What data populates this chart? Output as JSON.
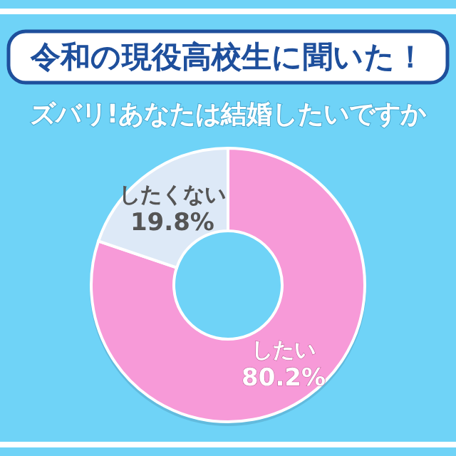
{
  "chart_data": {
    "type": "donut",
    "title": "令和の現役高校生に聞いた！",
    "subtitle": "ズバリ!あなたは結婚したいですか",
    "categories": [
      "したい",
      "したくない"
    ],
    "values": [
      80.2,
      19.8
    ],
    "value_labels": [
      "80.2%",
      "19.8%"
    ],
    "colors": [
      "#f79ad8",
      "#dde9f7"
    ]
  }
}
